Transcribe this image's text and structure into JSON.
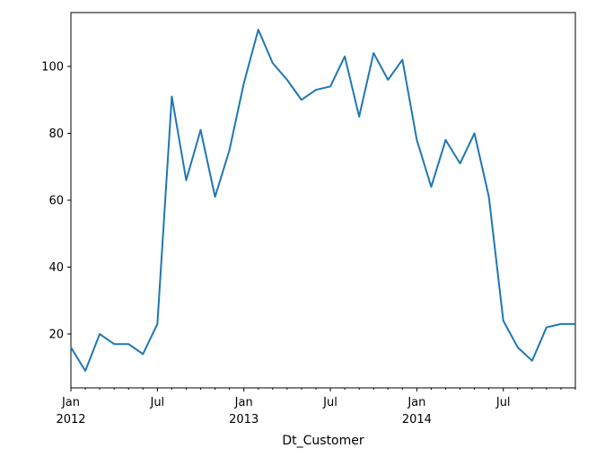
{
  "chart_data": {
    "type": "line",
    "title": "",
    "xlabel": "Dt_Customer",
    "ylabel": "",
    "x": [
      "2012-01",
      "2012-02",
      "2012-03",
      "2012-04",
      "2012-05",
      "2012-06",
      "2012-07",
      "2012-08",
      "2012-09",
      "2012-10",
      "2012-11",
      "2012-12",
      "2013-01",
      "2013-02",
      "2013-03",
      "2013-04",
      "2013-05",
      "2013-06",
      "2013-07",
      "2013-08",
      "2013-09",
      "2013-10",
      "2013-11",
      "2013-12",
      "2014-01",
      "2014-02",
      "2014-03",
      "2014-04",
      "2014-05",
      "2014-06",
      "2014-07",
      "2014-08",
      "2014-09",
      "2014-10",
      "2014-11",
      "2014-12"
    ],
    "series": [
      {
        "values": [
          16,
          9,
          20,
          17,
          17,
          14,
          23,
          91,
          66,
          81,
          61,
          75,
          95,
          111,
          101,
          96,
          90,
          93,
          94,
          103,
          85,
          104,
          96,
          102,
          78,
          64,
          78,
          71,
          80,
          61,
          24,
          16,
          12,
          22,
          23,
          23
        ],
        "color": "#1f77b4"
      }
    ],
    "ylim": [
      3.9,
      116.1
    ],
    "yticks": [
      20,
      40,
      60,
      80,
      100
    ],
    "xticks": [
      {
        "x": "2012-01",
        "label": "Jan",
        "sublabel": "2012"
      },
      {
        "x": "2012-07",
        "label": "Jul",
        "sublabel": ""
      },
      {
        "x": "2013-01",
        "label": "Jan",
        "sublabel": "2013"
      },
      {
        "x": "2013-07",
        "label": "Jul",
        "sublabel": ""
      },
      {
        "x": "2014-01",
        "label": "Jan",
        "sublabel": "2014"
      },
      {
        "x": "2014-07",
        "label": "Jul",
        "sublabel": ""
      }
    ],
    "grid": false,
    "legend": "none"
  }
}
